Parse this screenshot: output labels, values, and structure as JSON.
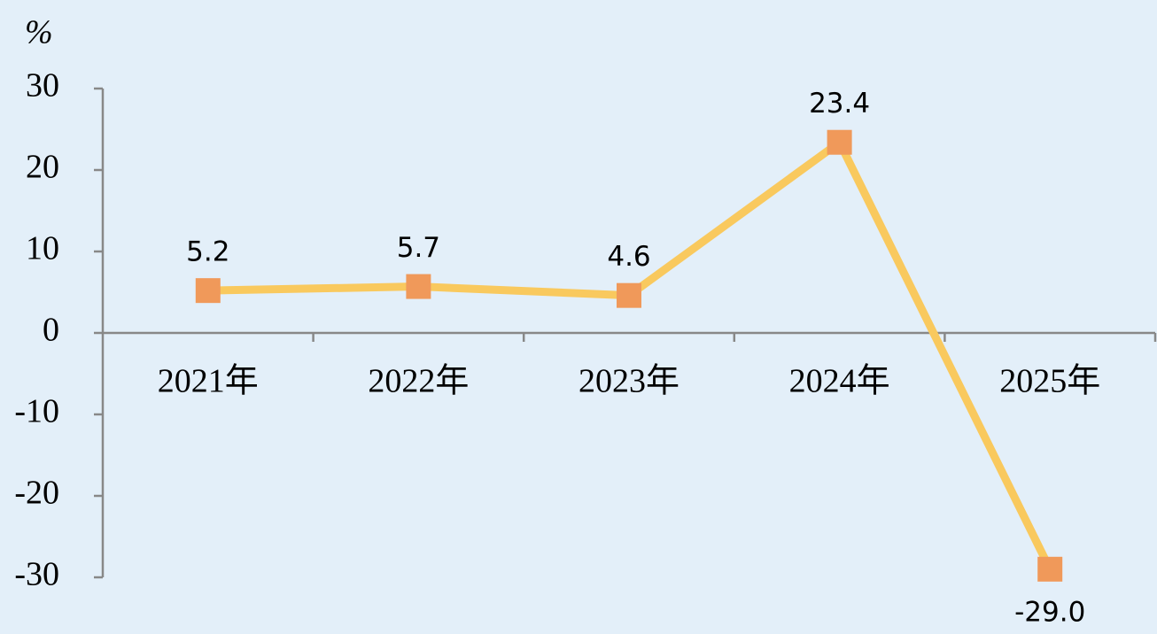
{
  "chart_data": {
    "type": "line",
    "y_label": "%",
    "categories": [
      "2021年",
      "2022年",
      "2023年",
      "2024年",
      "2025年"
    ],
    "series": [
      {
        "color": "#f9c95e",
        "marker_color": "#f0995a",
        "values": [
          5.2,
          5.7,
          4.6,
          23.4,
          -29
        ],
        "value_labels": [
          "5.2",
          "5.7",
          "4.6",
          "23.4",
          "-29.0"
        ]
      }
    ],
    "ylim": [
      -30,
      30
    ],
    "yticks": [
      -30,
      -20,
      -10,
      0,
      10,
      20,
      30
    ]
  }
}
